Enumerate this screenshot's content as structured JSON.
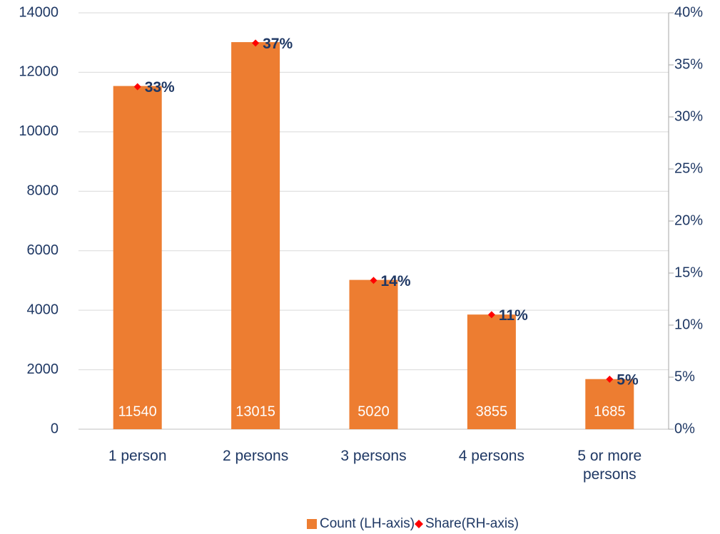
{
  "chart_data": {
    "type": "bar",
    "categories": [
      "1 person",
      "2 persons",
      "3 persons",
      "4 persons",
      "5 or more persons"
    ],
    "series": [
      {
        "name": "Count (LH-axis)",
        "type": "bar",
        "color": "#ed7d31",
        "values": [
          11540,
          13015,
          5020,
          3855,
          1685
        ]
      },
      {
        "name": "Share(RH-axis)",
        "type": "scatter",
        "axis": "y2",
        "color": "#ff0000",
        "values": [
          32.9,
          37.1,
          14.3,
          11.0,
          4.8
        ],
        "value_labels": [
          "33%",
          "37%",
          "14%",
          "11%",
          "5%"
        ]
      }
    ],
    "ylim": [
      0,
      14000
    ],
    "yticks": [
      0,
      2000,
      4000,
      6000,
      8000,
      10000,
      12000,
      14000
    ],
    "y2lim": [
      0,
      40
    ],
    "y2ticks": [
      {
        "value": 0,
        "label": "0%"
      },
      {
        "value": 5,
        "label": "5%"
      },
      {
        "value": 10,
        "label": "10%"
      },
      {
        "value": 15,
        "label": "15%"
      },
      {
        "value": 20,
        "label": "20%"
      },
      {
        "value": 25,
        "label": "25%"
      },
      {
        "value": 30,
        "label": "30%"
      },
      {
        "value": 35,
        "label": "35%"
      },
      {
        "value": 40,
        "label": "40%"
      }
    ],
    "grid": true,
    "legend": "bottom"
  }
}
